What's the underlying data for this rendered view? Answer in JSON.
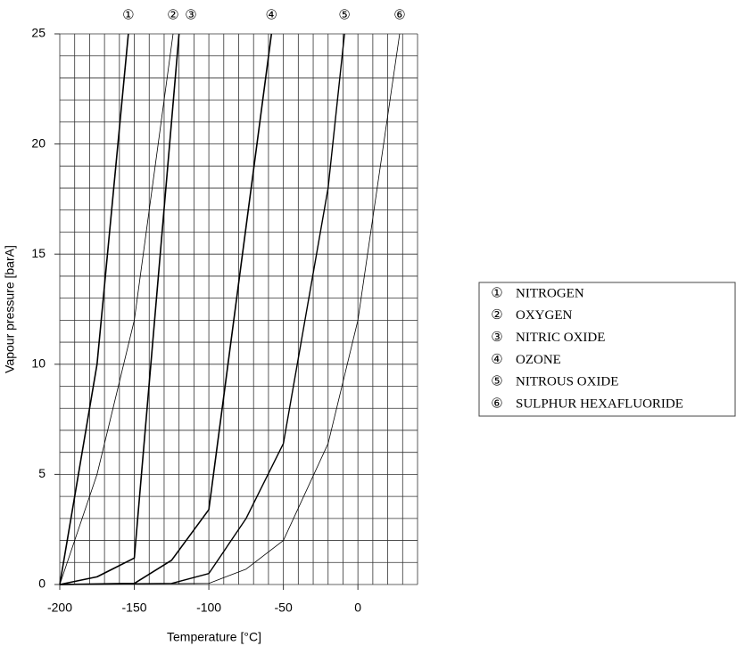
{
  "chart_data": {
    "type": "line",
    "xlabel": "Temperature [°C]",
    "ylabel": "Vapour pressure [barA]",
    "xlim": [
      -200,
      40
    ],
    "ylim": [
      0,
      25
    ],
    "xticks": [
      -200,
      -150,
      -100,
      -50,
      0
    ],
    "yticks": [
      0,
      5,
      10,
      15,
      20,
      25
    ],
    "xgrid": [
      -200,
      -190,
      -180,
      -170,
      -160,
      -150,
      -140,
      -130,
      -120,
      -110,
      -100,
      -90,
      -80,
      -70,
      -60,
      -50,
      -40,
      -30,
      -20,
      -10,
      0,
      10,
      20,
      30,
      40
    ],
    "ygrid": [
      0,
      1,
      2,
      3,
      4,
      5,
      6,
      7,
      8,
      9,
      10,
      11,
      12,
      13,
      14,
      15,
      16,
      17,
      18,
      19,
      20,
      21,
      22,
      23,
      24,
      25
    ],
    "legend": "right",
    "series": [
      {
        "label": "①",
        "name": "NITROGEN",
        "color": "#000000",
        "width": 1.6,
        "x": [
          -200,
          -175,
          -154
        ],
        "values": [
          0,
          10,
          25
        ]
      },
      {
        "label": "②",
        "name": "OXYGEN",
        "color": "#000000",
        "width": 0.8,
        "x": [
          -200,
          -175,
          -150,
          -124
        ],
        "values": [
          0,
          5,
          12,
          25
        ]
      },
      {
        "label": "③",
        "name": "NITRIC OXIDE",
        "color": "#000000",
        "width": 1.6,
        "x": [
          -200,
          -175,
          -150,
          -120
        ],
        "values": [
          0,
          0.35,
          1.2,
          25
        ]
      },
      {
        "label": "④",
        "name": "OZONE",
        "color": "#000000",
        "width": 1.6,
        "x": [
          -200,
          -150,
          -125,
          -100,
          -58
        ],
        "values": [
          0,
          0.05,
          1.1,
          3.4,
          25
        ]
      },
      {
        "label": "⑤",
        "name": "NITROUS OXIDE",
        "color": "#000000",
        "width": 1.4,
        "x": [
          -200,
          -125,
          -100,
          -75,
          -50,
          -20,
          -9
        ],
        "values": [
          0,
          0.05,
          0.5,
          3,
          6.4,
          18,
          25
        ]
      },
      {
        "label": "⑥",
        "name": "SULPHUR HEXAFLUORIDE",
        "color": "#000000",
        "width": 0.8,
        "x": [
          -200,
          -100,
          -75,
          -50,
          -20,
          0,
          28
        ],
        "values": [
          0,
          0.05,
          0.7,
          2,
          6.4,
          12,
          25
        ]
      }
    ]
  }
}
